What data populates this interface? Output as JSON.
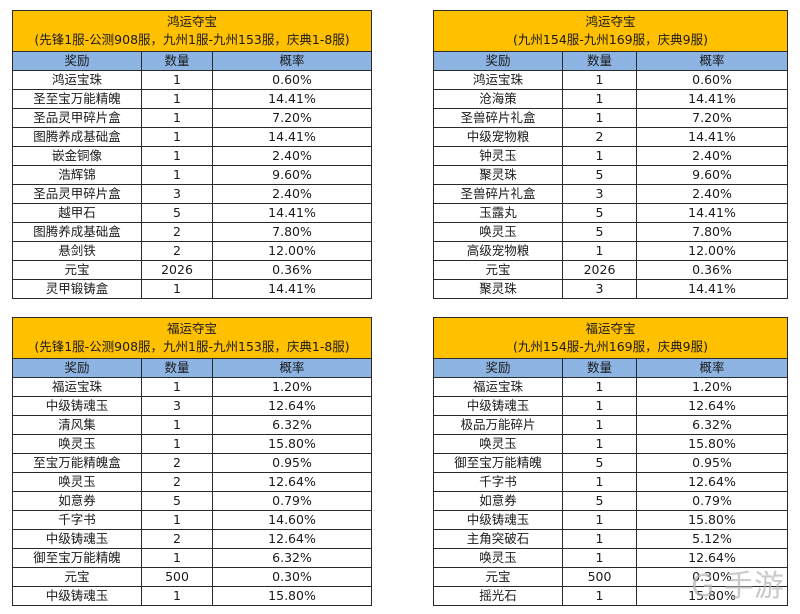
{
  "columns": [
    "奖励",
    "数量",
    "概率"
  ],
  "tables": [
    {
      "title": "鸿运夺宝",
      "subtitle": "(先锋1服-公测908服，九州1服-九州153服，庆典1-8服)",
      "rows": [
        [
          "鸿运宝珠",
          "1",
          "0.60%"
        ],
        [
          "圣至宝万能精魄",
          "1",
          "14.41%"
        ],
        [
          "圣品灵甲碎片盒",
          "1",
          "7.20%"
        ],
        [
          "图腾养成基础盒",
          "1",
          "14.41%"
        ],
        [
          "嵌金铜像",
          "1",
          "2.40%"
        ],
        [
          "浩辉锦",
          "1",
          "9.60%"
        ],
        [
          "圣品灵甲碎片盒",
          "3",
          "2.40%"
        ],
        [
          "越甲石",
          "5",
          "14.41%"
        ],
        [
          "图腾养成基础盒",
          "2",
          "7.80%"
        ],
        [
          "悬剑铁",
          "2",
          "12.00%"
        ],
        [
          "元宝",
          "2026",
          "0.36%"
        ],
        [
          "灵甲锻铸盒",
          "1",
          "14.41%"
        ]
      ]
    },
    {
      "title": "鸿运夺宝",
      "subtitle": "(九州154服-九州169服，庆典9服)",
      "rows": [
        [
          "鸿运宝珠",
          "1",
          "0.60%"
        ],
        [
          "沧海策",
          "1",
          "14.41%"
        ],
        [
          "圣兽碎片礼盒",
          "1",
          "7.20%"
        ],
        [
          "中级宠物粮",
          "2",
          "14.41%"
        ],
        [
          "钟灵玉",
          "1",
          "2.40%"
        ],
        [
          "聚灵珠",
          "5",
          "9.60%"
        ],
        [
          "圣兽碎片礼盒",
          "3",
          "2.40%"
        ],
        [
          "玉露丸",
          "5",
          "14.41%"
        ],
        [
          "唤灵玉",
          "5",
          "7.80%"
        ],
        [
          "高级宠物粮",
          "1",
          "12.00%"
        ],
        [
          "元宝",
          "2026",
          "0.36%"
        ],
        [
          "聚灵珠",
          "3",
          "14.41%"
        ]
      ]
    },
    {
      "title": "福运夺宝",
      "subtitle": "(先锋1服-公测908服，九州1服-九州153服，庆典1-8服)",
      "rows": [
        [
          "福运宝珠",
          "1",
          "1.20%"
        ],
        [
          "中级铸魂玉",
          "3",
          "12.64%"
        ],
        [
          "清风集",
          "1",
          "6.32%"
        ],
        [
          "唤灵玉",
          "1",
          "15.80%"
        ],
        [
          "至宝万能精魄盒",
          "2",
          "0.95%"
        ],
        [
          "唤灵玉",
          "2",
          "12.64%"
        ],
        [
          "如意券",
          "5",
          "0.79%"
        ],
        [
          "千字书",
          "1",
          "14.60%"
        ],
        [
          "中级铸魂玉",
          "2",
          "12.64%"
        ],
        [
          "御至宝万能精魄",
          "1",
          "6.32%"
        ],
        [
          "元宝",
          "500",
          "0.30%"
        ],
        [
          "中级铸魂玉",
          "1",
          "15.80%"
        ]
      ]
    },
    {
      "title": "福运夺宝",
      "subtitle": "(九州154服-九州169服，庆典9服)",
      "rows": [
        [
          "福运宝珠",
          "1",
          "1.20%"
        ],
        [
          "中级铸魂玉",
          "1",
          "12.64%"
        ],
        [
          "极品万能碎片",
          "1",
          "6.32%"
        ],
        [
          "唤灵玉",
          "1",
          "15.80%"
        ],
        [
          "御至宝万能精魄",
          "5",
          "0.95%"
        ],
        [
          "千字书",
          "1",
          "12.64%"
        ],
        [
          "如意券",
          "5",
          "0.79%"
        ],
        [
          "中级铸魂玉",
          "1",
          "15.80%"
        ],
        [
          "主角突破石",
          "1",
          "5.12%"
        ],
        [
          "唤灵玉",
          "1",
          "12.64%"
        ],
        [
          "元宝",
          "500",
          "0.30%"
        ],
        [
          "摇光石",
          "1",
          "15.80%"
        ]
      ]
    }
  ],
  "watermark": "G 手游",
  "colors": {
    "title_bg": "#ffc000",
    "header_bg": "#8db4e2",
    "border": "#2a2a2a"
  }
}
